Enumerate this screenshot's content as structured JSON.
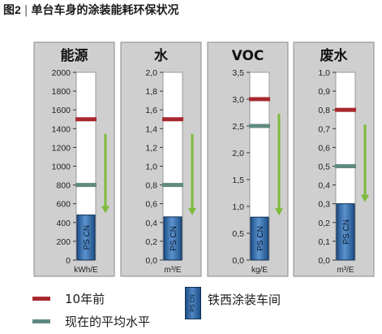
{
  "figure": {
    "number": "图2",
    "title": "单台车身的涂装能耗环保状况"
  },
  "colors": {
    "panel_bg": "#cfcfcf",
    "panel_border": "#8a8a8a",
    "tube_bg": "#ffffff",
    "bar_fill": "#2a5f9a",
    "ten_years_ago": "#a8282e",
    "current_avg": "#5f8a80",
    "arrow": "#7dbb3a"
  },
  "chart_data": [
    {
      "type": "bar",
      "title": "能源",
      "unit": "kWh/E",
      "ylim": [
        0,
        2000
      ],
      "ticks": [
        "0",
        "200",
        "400",
        "600",
        "800",
        "1000",
        "1200",
        "1400",
        "1600",
        "1800",
        "2000"
      ],
      "bar_value": 480,
      "bar_label": "PS CN",
      "ten_years_ago": 1500,
      "current_avg": 800
    },
    {
      "type": "bar",
      "title": "水",
      "unit": "m³/E",
      "ylim": [
        0,
        2.0
      ],
      "ticks": [
        "0,0",
        "0,2",
        "0,4",
        "0,6",
        "0,8",
        "1,0",
        "1,2",
        "1,4",
        "1,6",
        "1,8",
        "2,0"
      ],
      "bar_value": 0.46,
      "bar_label": "PS CN",
      "ten_years_ago": 1.5,
      "current_avg": 0.8
    },
    {
      "type": "bar",
      "title": "VOC",
      "unit": "kg/E",
      "ylim": [
        0,
        3.5
      ],
      "ticks": [
        "0,0",
        "0,5",
        "1,0",
        "1,5",
        "2,0",
        "2,5",
        "3,0",
        "3,5"
      ],
      "bar_value": 0.8,
      "bar_label": "PS CN",
      "ten_years_ago": 3.0,
      "current_avg": 2.5
    },
    {
      "type": "bar",
      "title": "废水",
      "unit": "m³/E",
      "ylim": [
        0,
        1.0
      ],
      "ticks": [
        "0,0",
        "0,1",
        "0,2",
        "0,3",
        "0,4",
        "0,5",
        "0,6",
        "0,7",
        "0,8",
        "0,9",
        "1,0"
      ],
      "bar_value": 0.3,
      "bar_label": "PS CN",
      "ten_years_ago": 0.8,
      "current_avg": 0.5
    }
  ],
  "legend": {
    "ten_years_ago": "10年前",
    "current_avg": "现在的平均水平",
    "plant": "铁西涂装车间",
    "plant_box_label": "PS CN"
  }
}
